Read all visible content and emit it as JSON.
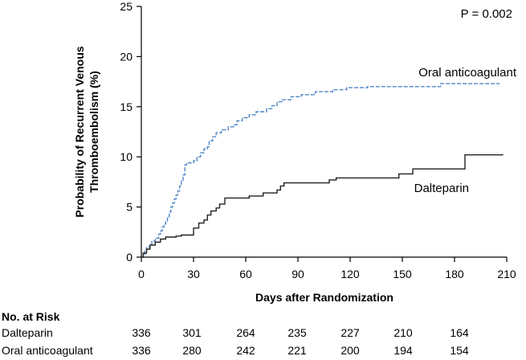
{
  "chart_data": {
    "type": "line",
    "step": true,
    "xlabel": "Days after Randomization",
    "ylabel": [
      "Probability of Recurrent Venous",
      "Thromboembolism (%)"
    ],
    "xlim": [
      0,
      210
    ],
    "ylim": [
      0,
      25
    ],
    "x_ticks": [
      0,
      30,
      60,
      90,
      120,
      150,
      180,
      210
    ],
    "y_ticks": [
      0,
      5,
      10,
      15,
      20,
      25
    ],
    "annotation": "P = 0.002",
    "series": [
      {
        "name": "Oral anticoagulant",
        "color": "#4f86c6",
        "style": "dashed",
        "points": [
          [
            0,
            0
          ],
          [
            1,
            0.3
          ],
          [
            2,
            0.6
          ],
          [
            3,
            1.0
          ],
          [
            5,
            1.3
          ],
          [
            6,
            1.6
          ],
          [
            8,
            1.9
          ],
          [
            10,
            2.3
          ],
          [
            11,
            2.6
          ],
          [
            12,
            3.0
          ],
          [
            13,
            3.3
          ],
          [
            14,
            3.6
          ],
          [
            15,
            4.0
          ],
          [
            16,
            4.5
          ],
          [
            17,
            5.0
          ],
          [
            18,
            5.4
          ],
          [
            19,
            5.8
          ],
          [
            20,
            6.2
          ],
          [
            21,
            6.6
          ],
          [
            22,
            7.1
          ],
          [
            23,
            7.6
          ],
          [
            24,
            8.2
          ],
          [
            25,
            9.2
          ],
          [
            26,
            9.4
          ],
          [
            30,
            9.6
          ],
          [
            32,
            10.0
          ],
          [
            34,
            10.4
          ],
          [
            36,
            10.8
          ],
          [
            38,
            11.0
          ],
          [
            39,
            11.6
          ],
          [
            41,
            12.0
          ],
          [
            43,
            12.4
          ],
          [
            46,
            12.7
          ],
          [
            50,
            13.0
          ],
          [
            53,
            13.2
          ],
          [
            55,
            13.6
          ],
          [
            58,
            13.9
          ],
          [
            62,
            14.2
          ],
          [
            66,
            14.5
          ],
          [
            72,
            14.8
          ],
          [
            75,
            15.1
          ],
          [
            78,
            15.5
          ],
          [
            81,
            15.7
          ],
          [
            86,
            16.0
          ],
          [
            92,
            16.2
          ],
          [
            100,
            16.5
          ],
          [
            110,
            16.7
          ],
          [
            118,
            16.9
          ],
          [
            130,
            17.0
          ],
          [
            145,
            17.0
          ],
          [
            160,
            17.0
          ],
          [
            172,
            17.3
          ],
          [
            190,
            17.3
          ],
          [
            200,
            17.3
          ],
          [
            206,
            17.3
          ]
        ]
      },
      {
        "name": "Dalteparin",
        "color": "#222222",
        "style": "solid",
        "points": [
          [
            0,
            0
          ],
          [
            1,
            0.4
          ],
          [
            3,
            0.8
          ],
          [
            5,
            1.2
          ],
          [
            8,
            1.5
          ],
          [
            11,
            1.8
          ],
          [
            14,
            2.0
          ],
          [
            20,
            2.1
          ],
          [
            23,
            2.2
          ],
          [
            30,
            2.9
          ],
          [
            33,
            3.4
          ],
          [
            36,
            3.7
          ],
          [
            38,
            4.2
          ],
          [
            40,
            4.6
          ],
          [
            43,
            4.9
          ],
          [
            45,
            5.3
          ],
          [
            48,
            5.9
          ],
          [
            62,
            6.1
          ],
          [
            70,
            6.4
          ],
          [
            78,
            6.7
          ],
          [
            80,
            7.1
          ],
          [
            82,
            7.4
          ],
          [
            88,
            7.4
          ],
          [
            108,
            7.7
          ],
          [
            112,
            7.9
          ],
          [
            130,
            7.9
          ],
          [
            148,
            8.3
          ],
          [
            156,
            8.8
          ],
          [
            170,
            8.8
          ],
          [
            186,
            10.2
          ],
          [
            196,
            10.2
          ],
          [
            208,
            10.2
          ]
        ]
      }
    ]
  },
  "labels": {
    "oral": "Oral anticoagulant",
    "dalteparin": "Dalteparin"
  },
  "risk_table": {
    "title": "No. at Risk",
    "rows": [
      {
        "label": "Dalteparin",
        "values": [
          "336",
          "301",
          "264",
          "235",
          "227",
          "210",
          "164"
        ]
      },
      {
        "label": "Oral anticoagulant",
        "values": [
          "336",
          "280",
          "242",
          "221",
          "200",
          "194",
          "154"
        ]
      }
    ]
  }
}
